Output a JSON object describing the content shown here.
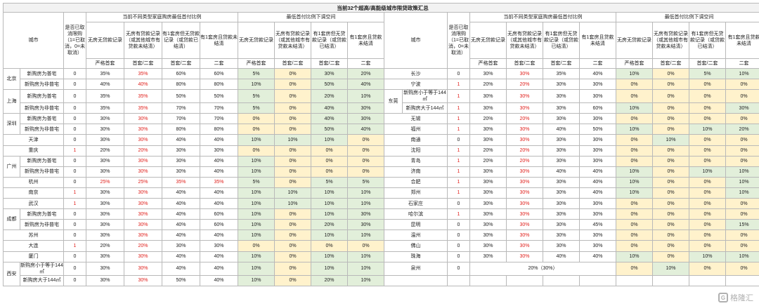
{
  "title": "当前32个超高/高能级城市限贷政策汇总",
  "headers": {
    "city": "城市",
    "cancel": "是否已取消限购（1=已取消，0=未取消）",
    "group_a": "当前不同类型家庭购房最低首付比例",
    "group_b": "最低首付比例下调空间",
    "sub_cols": [
      "无房无贷款记录",
      "无房有贷款记录（或其他城市有贷款未结清）",
      "有1套房但无贷款记录（或贷款已结清）",
      "有1套房且贷款未结清"
    ],
    "level": [
      "严格首套",
      "首套/二套",
      "首套/二套",
      "二套"
    ]
  },
  "left_rows": [
    {
      "city": "北京",
      "sub": "新购房为普宅",
      "cancel": "0",
      "v": [
        "35%",
        "35%",
        "60%",
        "60%"
      ],
      "r": [
        "5%",
        "0%",
        "30%",
        "20%"
      ]
    },
    {
      "city": "",
      "sub": "新购房为非普宅",
      "cancel": "0",
      "v": [
        "40%",
        "40%",
        "80%",
        "80%"
      ],
      "r": [
        "10%",
        "0%",
        "50%",
        "40%"
      ]
    },
    {
      "city": "上海",
      "sub": "新购房为普宅",
      "cancel": "0",
      "v": [
        "35%",
        "35%",
        "50%",
        "50%"
      ],
      "r": [
        "5%",
        "0%",
        "20%",
        "10%"
      ]
    },
    {
      "city": "",
      "sub": "新购房为非普宅",
      "cancel": "0",
      "v": [
        "35%",
        "35%",
        "70%",
        "70%"
      ],
      "r": [
        "5%",
        "0%",
        "40%",
        "30%"
      ]
    },
    {
      "city": "深圳",
      "sub": "新购房为普宅",
      "cancel": "0",
      "v": [
        "30%",
        "30%",
        "70%",
        "70%"
      ],
      "r": [
        "0%",
        "0%",
        "40%",
        "30%"
      ]
    },
    {
      "city": "",
      "sub": "新购房为非普宅",
      "cancel": "0",
      "v": [
        "30%",
        "30%",
        "80%",
        "80%"
      ],
      "r": [
        "0%",
        "0%",
        "50%",
        "40%"
      ]
    },
    {
      "city": "天津",
      "sub": "",
      "cancel": "0",
      "v": [
        "30%",
        "30%",
        "40%",
        "40%"
      ],
      "r": [
        "10%",
        "10%",
        "10%",
        "0%"
      ]
    },
    {
      "city": "重庆",
      "sub": "",
      "cancel": "1",
      "v": [
        "20%",
        "20%",
        "30%",
        "30%"
      ],
      "r": [
        "0%",
        "0%",
        "0%",
        "0%"
      ]
    },
    {
      "city": "广州",
      "sub": "新购房为普宅",
      "cancel": "0",
      "v": [
        "30%",
        "30%",
        "30%",
        "40%"
      ],
      "r": [
        "10%",
        "0%",
        "0%",
        "0%"
      ]
    },
    {
      "city": "",
      "sub": "新购房为非普宅",
      "cancel": "0",
      "v": [
        "30%",
        "30%",
        "30%",
        "40%"
      ],
      "r": [
        "10%",
        "0%",
        "0%",
        "0%"
      ]
    },
    {
      "city": "杭州",
      "sub": "",
      "cancel": "0",
      "v": [
        "25%",
        "25%",
        "35%",
        "35%"
      ],
      "r": [
        "5%",
        "0%",
        "5%",
        "5%"
      ]
    },
    {
      "city": "南京",
      "sub": "",
      "cancel": "1",
      "v": [
        "30%",
        "30%",
        "40%",
        "40%"
      ],
      "r": [
        "10%",
        "10%",
        "10%",
        "10%"
      ]
    },
    {
      "city": "武汉",
      "sub": "",
      "cancel": "1",
      "v": [
        "30%",
        "30%",
        "40%",
        "40%"
      ],
      "r": [
        "10%",
        "10%",
        "10%",
        "10%"
      ]
    },
    {
      "city": "成都",
      "sub": "新购房为普宅",
      "cancel": "0",
      "v": [
        "30%",
        "30%",
        "40%",
        "60%"
      ],
      "r": [
        "10%",
        "0%",
        "10%",
        "30%"
      ]
    },
    {
      "city": "",
      "sub": "新购房为非普宅",
      "cancel": "0",
      "v": [
        "30%",
        "30%",
        "40%",
        "60%"
      ],
      "r": [
        "10%",
        "0%",
        "20%",
        "30%"
      ]
    },
    {
      "city": "苏州",
      "sub": "",
      "cancel": "0",
      "v": [
        "30%",
        "30%",
        "40%",
        "40%"
      ],
      "r": [
        "10%",
        "0%",
        "10%",
        "10%"
      ]
    },
    {
      "city": "大连",
      "sub": "",
      "cancel": "1",
      "v": [
        "20%",
        "20%",
        "30%",
        "30%"
      ],
      "r": [
        "0%",
        "0%",
        "0%",
        "0%"
      ]
    },
    {
      "city": "厦门",
      "sub": "",
      "cancel": "0",
      "v": [
        "30%",
        "30%",
        "40%",
        "40%"
      ],
      "r": [
        "10%",
        "0%",
        "10%",
        "10%"
      ]
    },
    {
      "city": "西安",
      "sub": "新购房小于等于144㎡",
      "cancel": "0",
      "v": [
        "30%",
        "30%",
        "40%",
        "40%"
      ],
      "r": [
        "10%",
        "0%",
        "10%",
        "10%"
      ]
    },
    {
      "city": "",
      "sub": "新购房大于144㎡",
      "cancel": "0",
      "v": [
        "30%",
        "30%",
        "50%",
        "40%"
      ],
      "r": [
        "10%",
        "0%",
        "20%",
        "10%"
      ]
    }
  ],
  "right_rows": [
    {
      "city": "长沙",
      "sub": "",
      "cancel": "0",
      "v": [
        "30%",
        "30%",
        "35%",
        "40%"
      ],
      "r": [
        "10%",
        "0%",
        "5%",
        "10%"
      ]
    },
    {
      "city": "宁波",
      "sub": "",
      "cancel": "1",
      "v": [
        "20%",
        "20%",
        "30%",
        "30%"
      ],
      "r": [
        "0%",
        "0%",
        "0%",
        "0%"
      ]
    },
    {
      "city": "东莞",
      "sub": "新购房小于等于144㎡",
      "cancel": "1",
      "v": [
        "30%",
        "30%",
        "30%",
        "30%"
      ],
      "r": [
        "0%",
        "0%",
        "0%",
        "0%"
      ]
    },
    {
      "city": "",
      "sub": "新购房大于144㎡",
      "cancel": "1",
      "v": [
        "30%",
        "30%",
        "30%",
        "60%"
      ],
      "r": [
        "10%",
        "0%",
        "0%",
        "30%"
      ]
    },
    {
      "city": "无锡",
      "sub": "",
      "cancel": "1",
      "v": [
        "20%",
        "20%",
        "30%",
        "30%"
      ],
      "r": [
        "0%",
        "0%",
        "0%",
        "0%"
      ]
    },
    {
      "city": "福州",
      "sub": "",
      "cancel": "1",
      "v": [
        "30%",
        "30%",
        "40%",
        "50%"
      ],
      "r": [
        "10%",
        "0%",
        "10%",
        "20%"
      ]
    },
    {
      "city": "南通",
      "sub": "",
      "cancel": "0",
      "v": [
        "30%",
        "30%",
        "30%",
        "30%"
      ],
      "r": [
        "0%",
        "10%",
        "0%",
        "0%"
      ]
    },
    {
      "city": "沈阳",
      "sub": "",
      "cancel": "1",
      "v": [
        "20%",
        "20%",
        "30%",
        "30%"
      ],
      "r": [
        "0%",
        "0%",
        "0%",
        "0%"
      ]
    },
    {
      "city": "青岛",
      "sub": "",
      "cancel": "1",
      "v": [
        "20%",
        "20%",
        "30%",
        "30%"
      ],
      "r": [
        "0%",
        "0%",
        "0%",
        "0%"
      ]
    },
    {
      "city": "济南",
      "sub": "",
      "cancel": "1",
      "v": [
        "30%",
        "30%",
        "40%",
        "40%"
      ],
      "r": [
        "10%",
        "0%",
        "10%",
        "10%"
      ]
    },
    {
      "city": "合肥",
      "sub": "",
      "cancel": "1",
      "v": [
        "30%",
        "30%",
        "30%",
        "40%"
      ],
      "r": [
        "10%",
        "0%",
        "0%",
        "10%"
      ]
    },
    {
      "city": "郑州",
      "sub": "",
      "cancel": "1",
      "v": [
        "30%",
        "30%",
        "30%",
        "40%"
      ],
      "r": [
        "10%",
        "0%",
        "0%",
        "10%"
      ]
    },
    {
      "city": "石家庄",
      "sub": "",
      "cancel": "0",
      "v": [
        "30%",
        "30%",
        "30%",
        "30%"
      ],
      "r": [
        "0%",
        "0%",
        "0%",
        "0%"
      ]
    },
    {
      "city": "哈尔滨",
      "sub": "",
      "cancel": "1",
      "v": [
        "30%",
        "30%",
        "30%",
        "30%"
      ],
      "r": [
        "0%",
        "0%",
        "0%",
        "0%"
      ]
    },
    {
      "city": "昆明",
      "sub": "",
      "cancel": "0",
      "v": [
        "30%",
        "30%",
        "30%",
        "45%"
      ],
      "r": [
        "0%",
        "0%",
        "0%",
        "15%"
      ]
    },
    {
      "city": "温州",
      "sub": "",
      "cancel": "0",
      "v": [
        "30%",
        "30%",
        "30%",
        "30%"
      ],
      "r": [
        "0%",
        "0%",
        "0%",
        "0%"
      ]
    },
    {
      "city": "佛山",
      "sub": "",
      "cancel": "0",
      "v": [
        "30%",
        "30%",
        "30%",
        "30%"
      ],
      "r": [
        "0%",
        "0%",
        "0%",
        "0%"
      ]
    },
    {
      "city": "珠海",
      "sub": "",
      "cancel": "0",
      "v": [
        "30%",
        "30%",
        "40%",
        "40%"
      ],
      "r": [
        "10%",
        "0%",
        "10%",
        "10%"
      ]
    },
    {
      "city": "泉州",
      "sub": "",
      "cancel": "0",
      "v": [
        "20%（30%）",
        "",
        "",
        ""
      ],
      "r": [
        "0%",
        "10%",
        "0%",
        "0%"
      ]
    },
    {
      "city": "",
      "sub": "",
      "cancel": "",
      "v": [
        "",
        "",
        "",
        ""
      ],
      "r": [
        "",
        "",
        "",
        ""
      ]
    }
  ],
  "watermark": "格隆汇",
  "colors": {
    "green": "#e2efda",
    "yellow": "#fff2cc",
    "red_text": "#e0201c",
    "border": "#b9b9b9"
  }
}
